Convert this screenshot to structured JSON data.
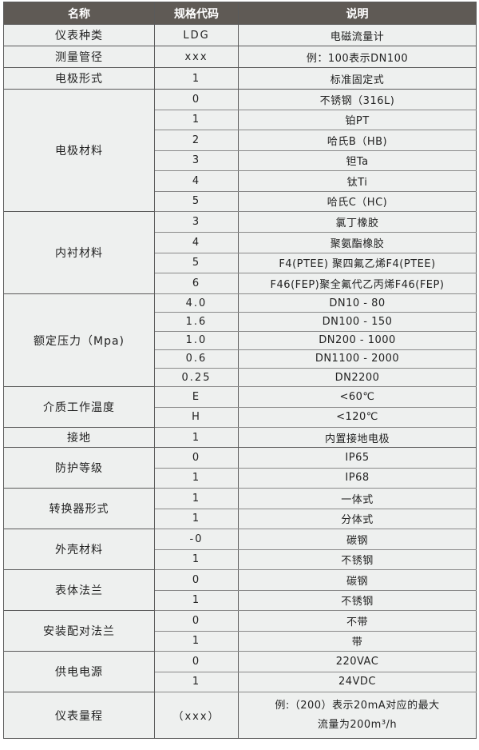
{
  "header": {
    "name": "名称",
    "code": "规格代码",
    "desc": "说明"
  },
  "groups": [
    {
      "name": "仪表种类",
      "rows": [
        {
          "code": "LDG",
          "desc": "电磁流量计"
        }
      ]
    },
    {
      "name": "测量管径",
      "rows": [
        {
          "code": "xxx",
          "desc": "例：100表示DN100"
        }
      ]
    },
    {
      "name": "电极形式",
      "rows": [
        {
          "code": "1",
          "desc": "标准固定式"
        }
      ]
    },
    {
      "name": "电极材料",
      "rows": [
        {
          "code": "0",
          "desc": "不锈钢（316L)"
        },
        {
          "code": "1",
          "desc": "铂PT"
        },
        {
          "code": "2",
          "desc": "哈氏B（HB)"
        },
        {
          "code": "3",
          "desc": "钽Ta"
        },
        {
          "code": "4",
          "desc": "钛Ti"
        },
        {
          "code": "5",
          "desc": "哈氏C（HC)"
        }
      ]
    },
    {
      "name": "内衬材料",
      "rows": [
        {
          "code": "3",
          "desc": "氯丁橡胶"
        },
        {
          "code": "4",
          "desc": "聚氨酯橡胶"
        },
        {
          "code": "5",
          "desc": "F4(PTEE) 聚四氟乙烯F4(PTEE)"
        },
        {
          "code": "6",
          "desc": "F46(FEP)聚全氟代乙丙烯F46(FEP)"
        }
      ]
    },
    {
      "name": "额定压力（Mpa)",
      "rows": [
        {
          "code": "4.0",
          "desc": "DN10 - 80"
        },
        {
          "code": "1.6",
          "desc": "DN100 - 150"
        },
        {
          "code": "1.0",
          "desc": "DN200 - 1000"
        },
        {
          "code": "0.6",
          "desc": "DN1100 - 2000"
        },
        {
          "code": "0.25",
          "desc": "DN2200"
        }
      ]
    },
    {
      "name": "介质工作温度",
      "rows": [
        {
          "code": "E",
          "desc": "<60℃"
        },
        {
          "code": "H",
          "desc": "<120℃"
        }
      ]
    },
    {
      "name": "接地",
      "rows": [
        {
          "code": "1",
          "desc": "内置接地电极"
        }
      ]
    },
    {
      "name": "防护等级",
      "rows": [
        {
          "code": "0",
          "desc": "IP65"
        },
        {
          "code": "1",
          "desc": "IP68"
        }
      ]
    },
    {
      "name": "转换器形式",
      "rows": [
        {
          "code": "1",
          "desc": "一体式"
        },
        {
          "code": "1",
          "desc": "分体式"
        }
      ]
    },
    {
      "name": "外壳材料",
      "rows": [
        {
          "code": "-0",
          "desc": "碳钢"
        },
        {
          "code": "1",
          "desc": "不锈钢"
        }
      ]
    },
    {
      "name": "表体法兰",
      "rows": [
        {
          "code": "0",
          "desc": "碳钢"
        },
        {
          "code": "1",
          "desc": "不锈钢"
        }
      ]
    },
    {
      "name": "安装配对法兰",
      "rows": [
        {
          "code": "0",
          "desc": "不带"
        },
        {
          "code": "1",
          "desc": "带"
        }
      ]
    },
    {
      "name": "供电电源",
      "rows": [
        {
          "code": "0",
          "desc": "220VAC"
        },
        {
          "code": "1",
          "desc": "24VDC"
        }
      ]
    },
    {
      "name": "仪表量程",
      "rows": [
        {
          "code": "（xxx）",
          "desc": "例:（200）表示20mA对应的最大",
          "desc2": "流量为200m³/h"
        }
      ]
    }
  ]
}
